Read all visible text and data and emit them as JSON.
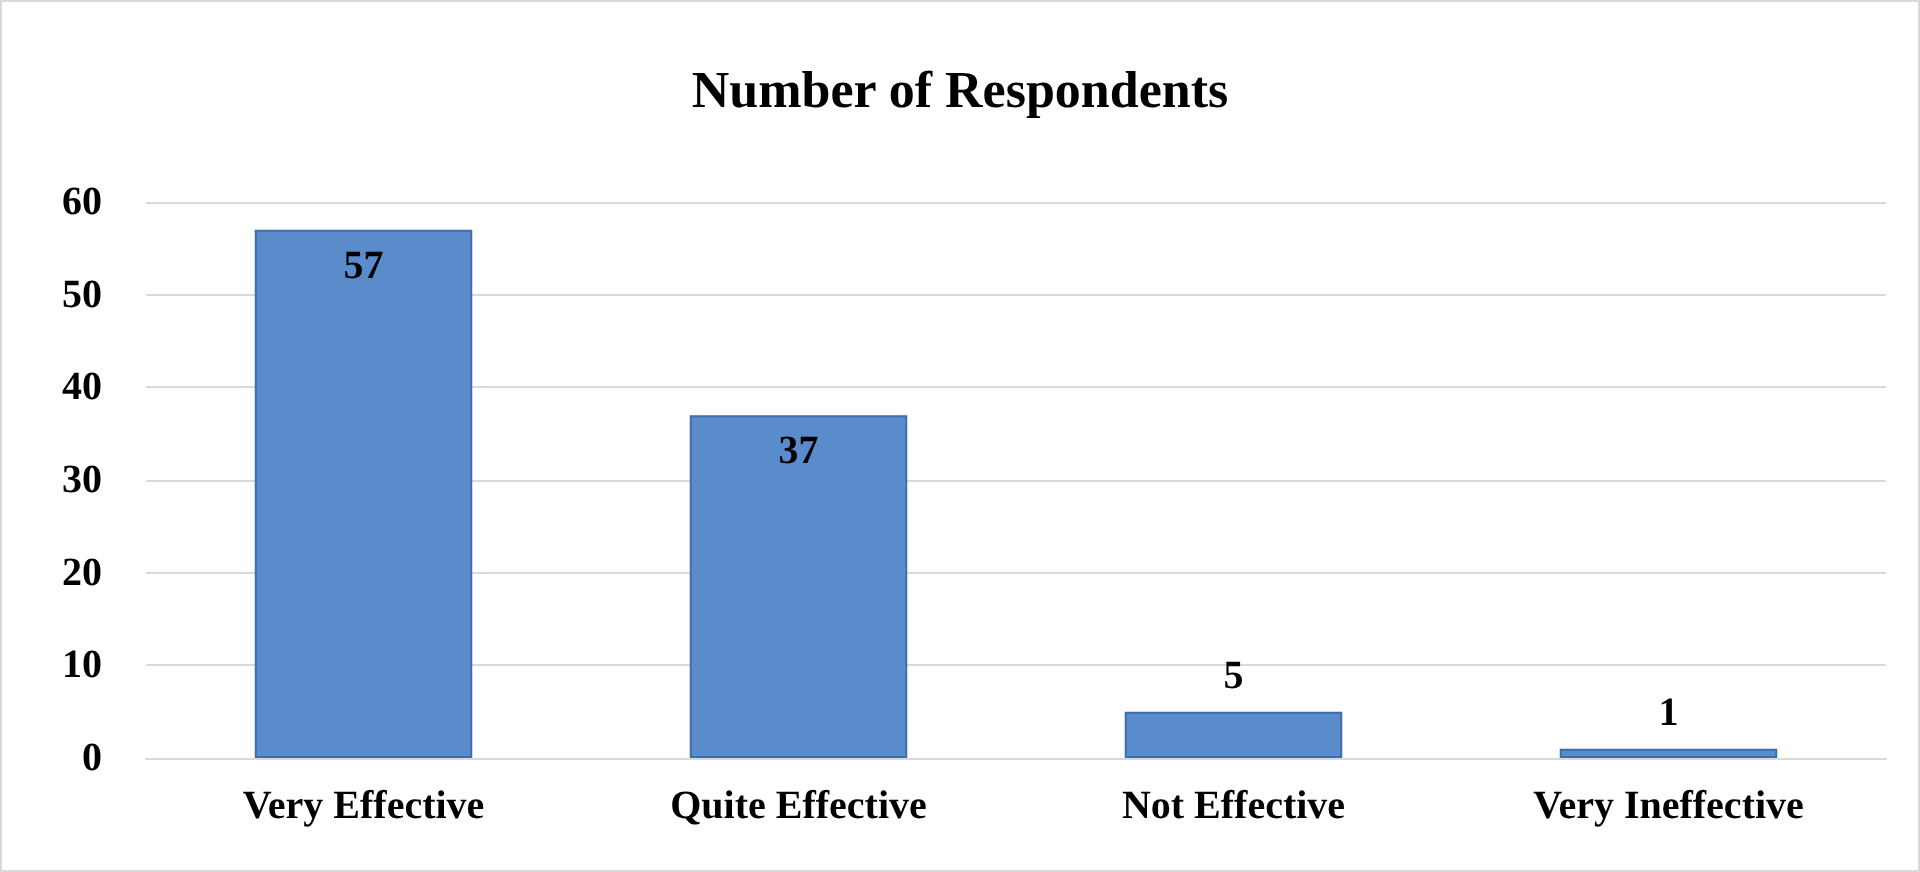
{
  "chart_data": {
    "type": "bar",
    "title": "Number of Respondents",
    "categories": [
      "Very Effective",
      "Quite Effective",
      "Not Effective",
      "Very Ineffective"
    ],
    "values": [
      57,
      37,
      5,
      1
    ],
    "color": "#5a8ccc",
    "ylim": [
      0,
      60
    ],
    "yticks": [
      0,
      10,
      20,
      30,
      40,
      50,
      60
    ],
    "grid": "y",
    "data_labels": true
  }
}
